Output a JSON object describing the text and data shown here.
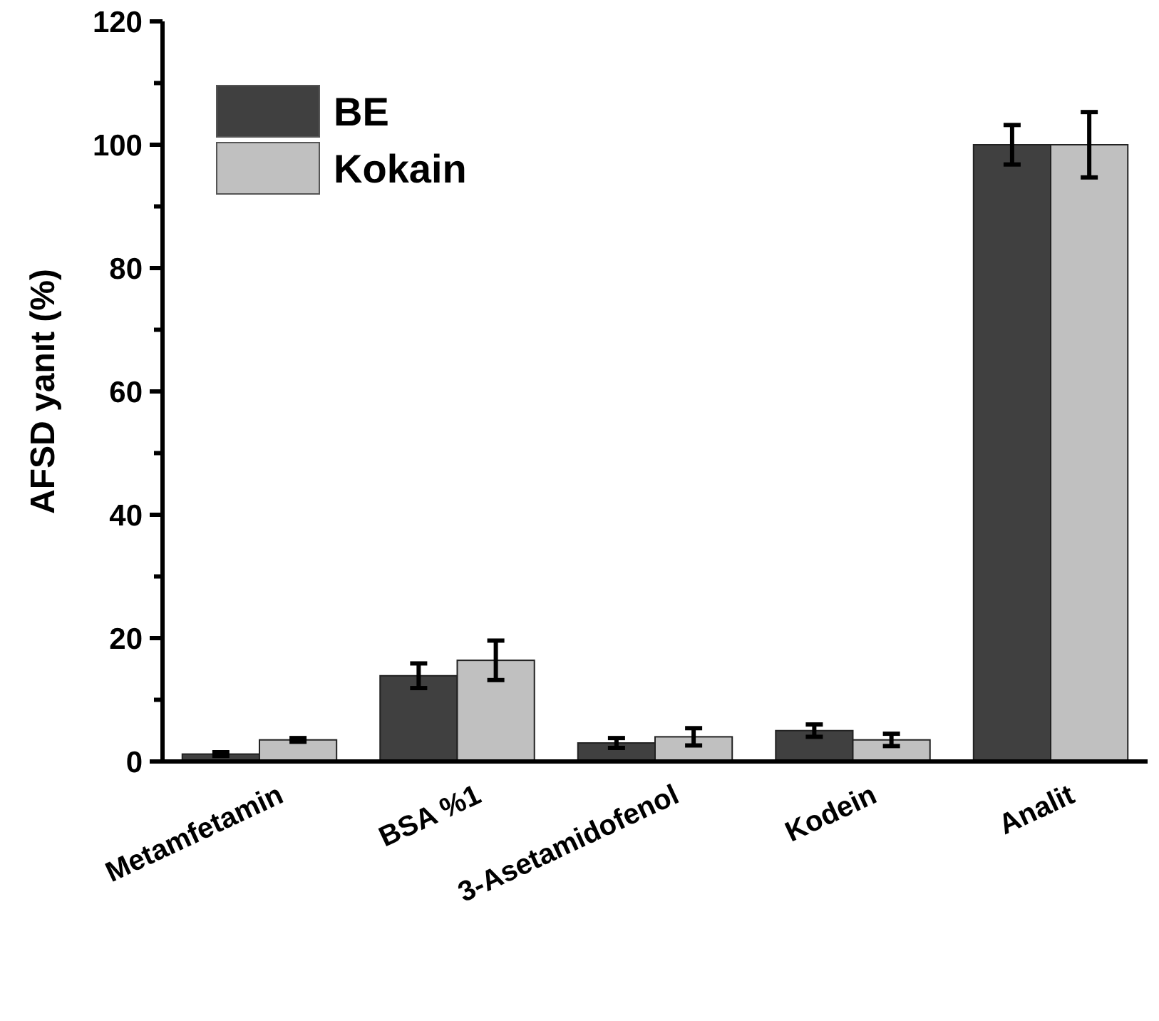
{
  "chart_data": {
    "type": "bar",
    "ylabel": "AFSD yanıt (%)",
    "categories": [
      "Metamfetamin",
      "BSA %1",
      "3-Asetamidofenol",
      "Kodein",
      "Analit"
    ],
    "series": [
      {
        "name": "BE",
        "color": "#404040",
        "values": [
          1.2,
          13.9,
          3,
          5,
          100
        ],
        "errors": [
          0.3,
          2,
          0.8,
          1,
          3.2
        ]
      },
      {
        "name": "Kokain",
        "color": "#c0c0c0",
        "values": [
          3.5,
          16.4,
          4,
          3.5,
          100
        ],
        "errors": [
          0.3,
          3.2,
          1.4,
          1,
          5.3
        ]
      }
    ],
    "ylim": [
      0,
      120
    ],
    "yticks": [
      0,
      {
        "value": 10,
        "label": null
      },
      20,
      {
        "value": 30,
        "label": null
      },
      40,
      {
        "value": 50,
        "label": null
      },
      60,
      {
        "value": 70,
        "label": null
      },
      80,
      {
        "value": 90,
        "label": null
      },
      100,
      {
        "value": 110,
        "label": null
      },
      120
    ],
    "legend": "top left"
  }
}
